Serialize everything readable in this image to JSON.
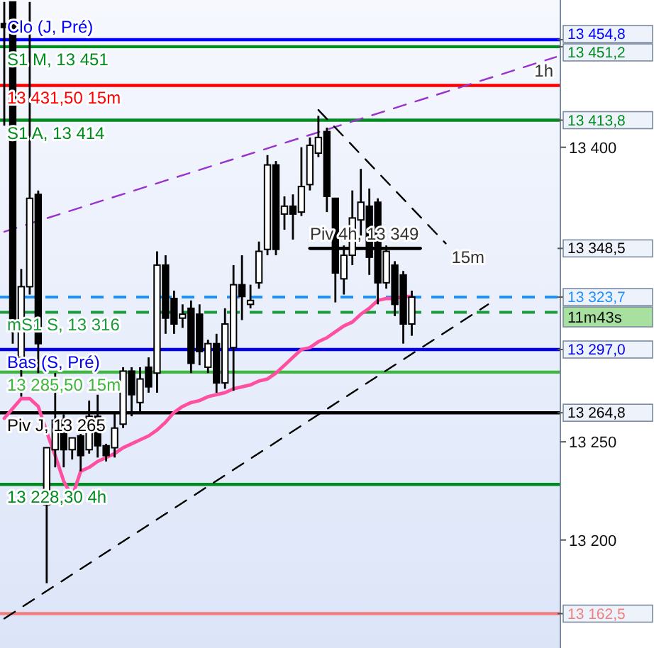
{
  "chart_data": {
    "type": "candlestick",
    "tick_labels": "y",
    "categories": [
      null,
      null,
      null,
      null,
      null,
      null,
      null,
      null,
      null,
      null,
      null,
      null,
      null,
      null,
      null,
      null,
      null,
      null,
      null,
      null,
      null,
      null,
      null,
      null,
      null,
      null,
      null,
      null,
      null,
      null,
      null,
      null,
      null,
      null,
      null,
      null,
      null,
      null,
      null,
      null,
      null,
      null,
      null,
      null,
      null,
      null,
      null,
      null,
      null,
      null,
      null,
      null,
      null,
      null,
      null,
      null,
      null,
      null,
      null,
      null,
      null,
      null,
      null,
      null,
      null,
      null
    ],
    "ohlc": [
      [
        13463,
        13474,
        13411,
        13461
      ],
      [
        13474,
        13474,
        13300,
        13308
      ],
      [
        13293,
        13338,
        13273,
        13329
      ],
      [
        13329,
        13474,
        13325,
        13374
      ],
      [
        13376,
        13378,
        13285,
        13300
      ],
      [
        13218,
        13247,
        13178,
        13247
      ],
      [
        13246,
        13285,
        13237,
        13261
      ],
      [
        13261,
        13264,
        13237,
        13246
      ],
      [
        13246,
        13252,
        13241,
        13252
      ],
      [
        13253,
        13254,
        13235,
        13243
      ],
      [
        13246,
        13271,
        13244,
        13263
      ],
      [
        13263,
        13274,
        13242,
        13248
      ],
      [
        13248,
        13249,
        13240,
        13243
      ],
      [
        13247,
        13265,
        13242,
        13257
      ],
      [
        13259,
        13288,
        13257,
        13286
      ],
      [
        13286,
        13288,
        13263,
        13274
      ],
      [
        13270,
        13288,
        13265,
        13282
      ],
      [
        13288,
        13293,
        13275,
        13278
      ],
      [
        13285,
        13347,
        13275,
        13340
      ],
      [
        13340,
        13345,
        13305,
        13313
      ],
      [
        13323,
        13327,
        13305,
        13310
      ],
      [
        13313,
        13320,
        13308,
        13315
      ],
      [
        13318,
        13322,
        13285,
        13290
      ],
      [
        13315,
        13320,
        13289,
        13296
      ],
      [
        13288,
        13302,
        13285,
        13300
      ],
      [
        13300,
        13305,
        13275,
        13280
      ],
      [
        13280,
        13318,
        13277,
        13310
      ],
      [
        13298,
        13340,
        13276,
        13330
      ],
      [
        13330,
        13345,
        13312,
        13324
      ],
      [
        13320,
        13330,
        13318,
        13322
      ],
      [
        13331,
        13352,
        13328,
        13347
      ],
      [
        13348,
        13396,
        13345,
        13391
      ],
      [
        13391,
        13393,
        13345,
        13348
      ],
      [
        13366,
        13375,
        13358,
        13370
      ],
      [
        13370,
        13376,
        13353,
        13366
      ],
      [
        13367,
        13400,
        13365,
        13380
      ],
      [
        13381,
        13405,
        13378,
        13401
      ],
      [
        13397,
        13416,
        13395,
        13405
      ],
      [
        13408,
        13410,
        13367,
        13375
      ],
      [
        13374,
        13374,
        13321,
        13336
      ],
      [
        13333,
        13350,
        13325,
        13345
      ],
      [
        13345,
        13378,
        13340,
        13364
      ],
      [
        13363,
        13389,
        13355,
        13372
      ],
      [
        13370,
        13379,
        13335,
        13344
      ],
      [
        13372,
        13374,
        13320,
        13331
      ],
      [
        13331,
        13350,
        13328,
        13347
      ],
      [
        13340,
        13342,
        13314,
        13320
      ],
      [
        13335,
        13337,
        13300,
        13310
      ],
      [
        13310,
        13327,
        13304,
        13323.7
      ],
      null,
      null,
      null,
      null,
      null,
      null,
      null,
      null,
      null,
      null,
      null,
      null,
      null,
      null,
      null,
      null,
      null
    ],
    "series": [
      {
        "type": "line",
        "color": "#ff4fa0",
        "values": [
          13262,
          13267,
          13272,
          13272,
          13268,
          13255,
          13243,
          13230,
          13222,
          13235,
          13237,
          13240,
          13242,
          13244,
          13247,
          13249,
          13251,
          13253,
          13256,
          13260,
          13265,
          13268,
          13270,
          13271,
          13273,
          13274,
          13275,
          13277,
          13278,
          13279,
          13281,
          13282,
          13285,
          13289,
          13293,
          13297,
          13298,
          13301,
          13303,
          13306,
          13309,
          13311,
          13315,
          13318,
          13322,
          13323,
          13323,
          13324,
          13324,
          null,
          null,
          null,
          null,
          null,
          null,
          null,
          null,
          null,
          null,
          null,
          null,
          null,
          null,
          null,
          null,
          null
        ]
      },
      {
        "type": "line",
        "name": "1h",
        "color": "#9933cc",
        "line_style": "dashed",
        "values": [
          13357,
          null,
          null,
          null,
          null,
          null,
          null,
          null,
          null,
          null,
          null,
          null,
          null,
          null,
          null,
          null,
          null,
          null,
          null,
          null,
          null,
          null,
          null,
          null,
          null,
          null,
          null,
          null,
          null,
          null,
          null,
          null,
          null,
          null,
          null,
          null,
          null,
          null,
          null,
          null,
          null,
          null,
          null,
          null,
          null,
          null,
          null,
          null,
          null,
          null,
          null,
          null,
          null,
          null,
          null,
          null,
          null,
          null,
          null,
          null,
          null,
          null,
          null,
          null,
          null,
          13446
        ]
      },
      {
        "type": "line",
        "color": "#000000",
        "line_style": "dashed",
        "values": [
          13160,
          null,
          null,
          null,
          null,
          null,
          null,
          null,
          null,
          null,
          null,
          null,
          null,
          null,
          null,
          null,
          null,
          null,
          null,
          null,
          null,
          null,
          null,
          null,
          null,
          null,
          null,
          null,
          null,
          null,
          null,
          null,
          null,
          null,
          null,
          null,
          null,
          null,
          null,
          null,
          null,
          null,
          null,
          null,
          null,
          null,
          null,
          null,
          null,
          null,
          null,
          null,
          null,
          null,
          null,
          null,
          null,
          13320,
          null,
          null,
          null,
          null,
          null,
          null,
          null,
          null
        ]
      },
      {
        "type": "line",
        "name": "15m",
        "color": "#000000",
        "line_style": "dashed",
        "values": [
          null,
          null,
          null,
          null,
          null,
          null,
          null,
          null,
          null,
          null,
          null,
          null,
          null,
          null,
          null,
          null,
          null,
          null,
          null,
          null,
          null,
          null,
          null,
          null,
          null,
          null,
          null,
          null,
          null,
          null,
          null,
          null,
          null,
          null,
          null,
          null,
          null,
          13419,
          null,
          null,
          null,
          null,
          null,
          null,
          null,
          null,
          null,
          null,
          null,
          null,
          null,
          null,
          13351,
          null,
          null,
          null,
          null,
          null,
          null,
          null,
          null,
          null,
          null,
          null,
          null,
          null
        ]
      },
      {
        "type": "line",
        "name": "Piv 4h, 13 349",
        "color": "#000000",
        "values": [
          null,
          null,
          null,
          null,
          null,
          null,
          null,
          null,
          null,
          null,
          null,
          null,
          null,
          null,
          null,
          null,
          null,
          null,
          null,
          null,
          null,
          null,
          null,
          null,
          null,
          null,
          null,
          null,
          null,
          null,
          null,
          null,
          null,
          null,
          null,
          null,
          13348.5,
          null,
          null,
          null,
          null,
          null,
          null,
          null,
          null,
          null,
          null,
          null,
          null,
          13348.5,
          null,
          null,
          null,
          null,
          null,
          null,
          null,
          null,
          null,
          null,
          null,
          null,
          null,
          null,
          null,
          null
        ]
      }
    ],
    "ylim": [
      13145,
      13475
    ],
    "yticks": [
      {
        "value": 13454.8,
        "label": "13 454,8"
      },
      {
        "value": 13451.2,
        "label": "13 451,2"
      },
      {
        "value": 13413.8,
        "label": "13 413,8"
      },
      {
        "value": 13400,
        "label": "13 400"
      },
      {
        "value": 13348.5,
        "label": "13 348,5"
      },
      {
        "value": 13323.7,
        "label": "13 323,7"
      },
      {
        "value": 13297,
        "label": "13 297,0"
      },
      {
        "value": 13264.8,
        "label": "13 264,8"
      },
      {
        "value": 13250,
        "label": "13 250"
      },
      {
        "value": 13200,
        "label": "13 200"
      },
      {
        "value": 13162.5,
        "label": "13 162,5"
      }
    ],
    "ref_lines": [
      {
        "axis": "y",
        "value": 13454.8,
        "label": "Clo (J, Pré)",
        "color": "#0000ff"
      },
      {
        "axis": "y",
        "value": 13451.2,
        "label": "S1 M, 13 451",
        "color": "#008c1e"
      },
      {
        "axis": "y",
        "value": 13431.5,
        "label": "13 431,50 15m",
        "color": "#ff0000"
      },
      {
        "axis": "y",
        "value": 13413.8,
        "label": "S1 A, 13 414",
        "color": "#008c1e"
      },
      {
        "axis": "y",
        "value": 13323.7,
        "label": null,
        "color": "#1e90ff",
        "line_style": "dashed"
      },
      {
        "axis": "y",
        "value": 13316,
        "label": "mS1 S, 13 316",
        "color": "#1a9a3a",
        "line_style": "dashed"
      },
      {
        "axis": "y",
        "value": 13297,
        "label": "Bas (S, Pré)",
        "color": "#0000ee"
      },
      {
        "axis": "y",
        "value": 13285.5,
        "label": "13 285,50 15m",
        "color": "#3cb83c"
      },
      {
        "axis": "y",
        "value": 13264.8,
        "label": "Piv J, 13 265",
        "color": "#000000"
      },
      {
        "axis": "y",
        "value": 13228.3,
        "label": "13 228,30 4h",
        "color": "#008c1e"
      },
      {
        "axis": "y",
        "value": 13162.5,
        "label": null,
        "color": "#f08080"
      }
    ],
    "annotations": [
      "11m43s"
    ]
  }
}
